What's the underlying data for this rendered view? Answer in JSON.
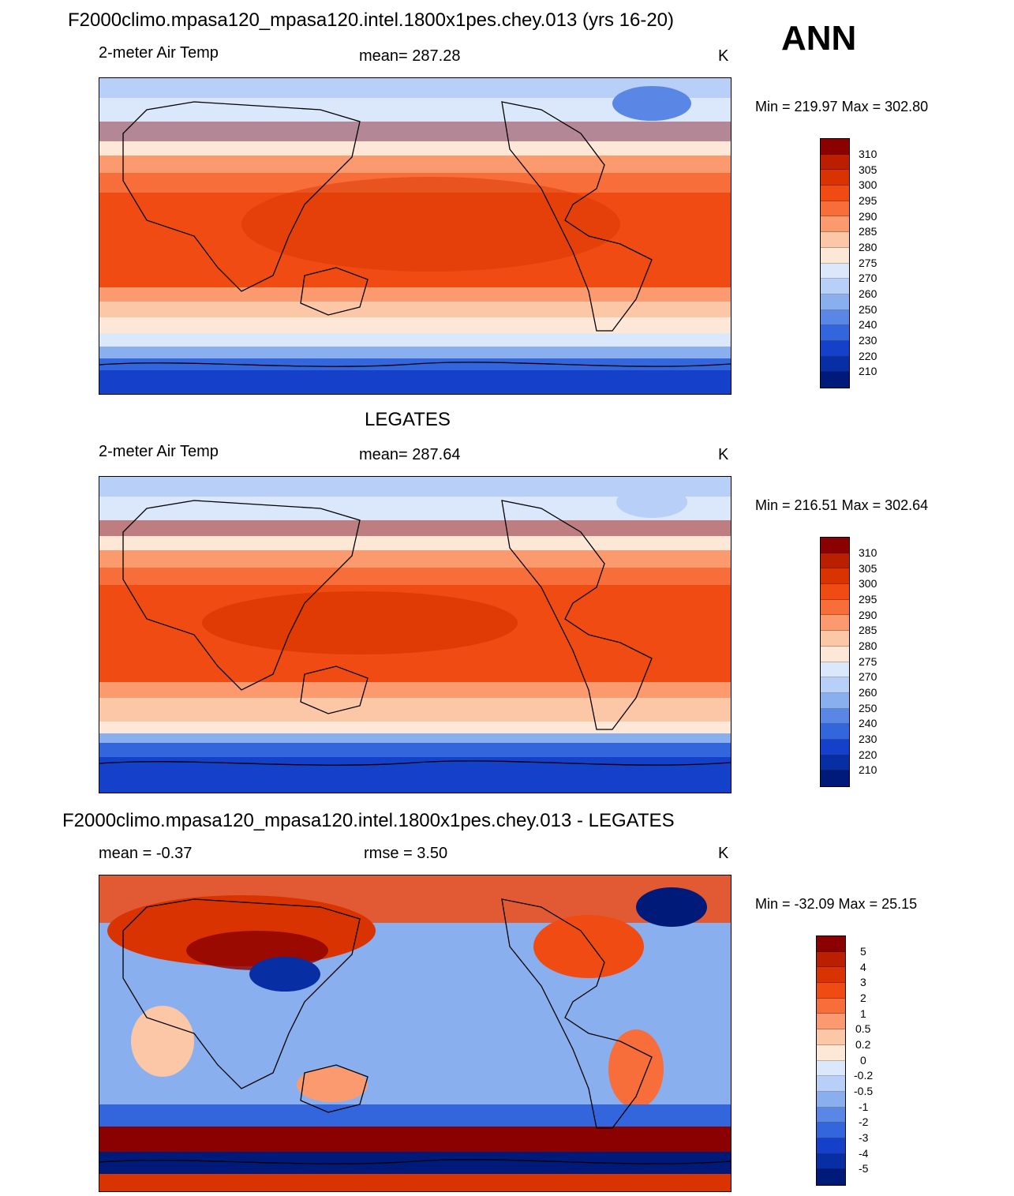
{
  "season": "ANN",
  "palettes": {
    "temp": [
      "#8b0000",
      "#b91f00",
      "#d83300",
      "#f04b12",
      "#f76e3a",
      "#fb9a6f",
      "#fcc7a7",
      "#fde8d7",
      "#dbe7fa",
      "#b8cff7",
      "#8aafef",
      "#5a86e6",
      "#3365dc",
      "#1540c9",
      "#072fa3",
      "#001a7a"
    ],
    "diff": [
      "#8b0000",
      "#b91f00",
      "#d83300",
      "#f04b12",
      "#f76e3a",
      "#fb9a6f",
      "#fcc7a7",
      "#fde8d7",
      "#dbe7fa",
      "#b8cff7",
      "#8aafef",
      "#5a86e6",
      "#3365dc",
      "#1540c9",
      "#072fa3",
      "#001a7a"
    ]
  },
  "panels": [
    {
      "id": "model",
      "title": "F2000climo.mpasa120_mpasa120.intel.1800x1pes.chey.013 (yrs 16-20)",
      "left_label": "2-meter Air Temp",
      "center_label": "mean= 287.28",
      "units": "K",
      "range_text": "Min = 219.97 Max = 302.80",
      "colorbar_labels": [
        "310",
        "305",
        "300",
        "295",
        "290",
        "285",
        "280",
        "275",
        "270",
        "260",
        "250",
        "240",
        "230",
        "220",
        "210"
      ]
    },
    {
      "id": "obs",
      "title": "LEGATES",
      "left_label": "2-meter Air Temp",
      "center_label": "mean= 287.64",
      "units": "K",
      "range_text": "Min = 216.51 Max = 302.64",
      "colorbar_labels": [
        "310",
        "305",
        "300",
        "295",
        "290",
        "285",
        "280",
        "275",
        "270",
        "260",
        "250",
        "240",
        "230",
        "220",
        "210"
      ]
    },
    {
      "id": "diff",
      "title": "F2000climo.mpasa120_mpasa120.intel.1800x1pes.chey.013 - LEGATES",
      "left_label": "mean =  -0.37",
      "center_label": "rmse =   3.50",
      "units": "K",
      "range_text": "Min = -32.09 Max =  25.15",
      "colorbar_labels": [
        "5",
        "4",
        "3",
        "2",
        "1",
        "0.5",
        "0.2",
        "0",
        "-0.2",
        "-0.5",
        "-1",
        "-2",
        "-3",
        "-4",
        "-5"
      ]
    }
  ]
}
